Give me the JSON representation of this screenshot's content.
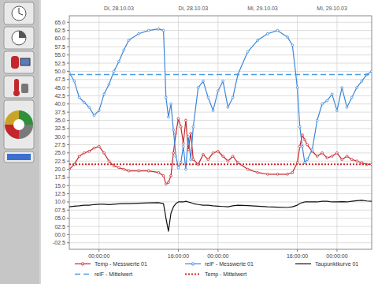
{
  "chart_data": {
    "type": "line",
    "x": [
      -6,
      -5,
      -4,
      -3,
      -2,
      -1,
      0,
      1,
      2,
      3,
      4,
      5,
      6,
      8,
      10,
      12,
      13,
      13.5,
      14,
      14.5,
      15,
      15.5,
      16,
      16.5,
      17,
      17.5,
      18,
      18.5,
      19,
      20,
      21,
      22,
      23,
      24,
      25,
      26,
      27,
      28,
      30,
      32,
      34,
      36,
      38,
      39,
      40,
      40.5,
      41,
      41.5,
      42,
      43,
      44,
      45,
      46,
      47,
      48,
      49,
      50,
      51,
      52,
      53,
      54,
      55
    ],
    "xlim": [
      -6,
      55
    ],
    "xticks": [
      {
        "value": 0,
        "label": "00:00:00"
      },
      {
        "value": 16,
        "label": "16:00:00"
      },
      {
        "value": 24,
        "label": "00:00:00"
      },
      {
        "value": 40,
        "label": "16:00:00"
      },
      {
        "value": 48,
        "label": "00:00:00"
      }
    ],
    "ylim": [
      -4.5,
      67
    ],
    "yticks": [
      {
        "value": 65,
        "label": "65.0"
      },
      62.5,
      {
        "value": 60,
        "label": "60.0"
      },
      57.5,
      {
        "value": 55,
        "label": "55.0"
      },
      52.5,
      {
        "value": 50,
        "label": "50.0"
      },
      47.5,
      {
        "value": 45,
        "label": "45.0"
      },
      42.5,
      {
        "value": 40,
        "label": "40.0"
      },
      37.5,
      {
        "value": 35,
        "label": "35.0"
      },
      32.5,
      {
        "value": 30,
        "label": "30.0"
      },
      27.5,
      {
        "value": 25,
        "label": "25.0"
      },
      22.5,
      {
        "value": 20,
        "label": "20.0"
      },
      17.5,
      {
        "value": 15,
        "label": "15.0"
      },
      12.5,
      {
        "value": 10,
        "label": "10.0"
      },
      {
        "value": 7.5,
        "label": "07.5"
      },
      {
        "value": 5,
        "label": "05.0"
      },
      {
        "value": 2.5,
        "label": "02.5"
      },
      {
        "value": 0,
        "label": "00.0"
      },
      {
        "value": -2.5,
        "label": "-02.5"
      }
    ],
    "grid": true,
    "legend": "bottom",
    "annotations": [
      {
        "text": "Di, 28.10.03",
        "x": 4
      },
      {
        "text": "Di, 28.10.03",
        "x": 19
      },
      {
        "text": "Mi, 29.10.03",
        "x": 33
      },
      {
        "text": "Mi, 29.10.03",
        "x": 47
      }
    ],
    "series": [
      {
        "name": "Temp - Messwerte 01",
        "color": "#c4262b",
        "marker": "circle",
        "line_style": "solid",
        "values": [
          20,
          21.5,
          24,
          25,
          25.5,
          26.5,
          27,
          25,
          22.5,
          21,
          20.5,
          20,
          19.5,
          19.5,
          19.5,
          19,
          18,
          15.5,
          16,
          18,
          25,
          31,
          35.5,
          33,
          28,
          35,
          26,
          31,
          23,
          21.5,
          24.5,
          23,
          25,
          25.5,
          24,
          22.5,
          24,
          22,
          20,
          19,
          18.5,
          18.5,
          18.5,
          19,
          22,
          27,
          30.5,
          29,
          27.5,
          25.5,
          24,
          25,
          23.5,
          24,
          25,
          23,
          24,
          23,
          22.5,
          22,
          21.5,
          21.5
        ]
      },
      {
        "name": "relF - Messwerte 01",
        "color": "#3b86d8",
        "marker": "circle",
        "line_style": "solid",
        "values": [
          49.5,
          47,
          42,
          40.5,
          39,
          36.5,
          38,
          43,
          46,
          50,
          53,
          56.5,
          59.5,
          61.5,
          62.5,
          63,
          62.5,
          42,
          36,
          40,
          32,
          24,
          20.5,
          22,
          27,
          20,
          30,
          23,
          33,
          45,
          47,
          42,
          38,
          44,
          47,
          39,
          42,
          49,
          56,
          59.5,
          61.5,
          62.5,
          60.5,
          58,
          45,
          33,
          27,
          22,
          23,
          26,
          35,
          40,
          41,
          43,
          38,
          45,
          39,
          42,
          45,
          47,
          49,
          50
        ]
      },
      {
        "name": "Taupunktkurve 01",
        "color": "#111111",
        "line_style": "solid",
        "values": [
          8.5,
          8.7,
          8.8,
          9,
          9,
          9.2,
          9.3,
          9.3,
          9.2,
          9.3,
          9.4,
          9.5,
          9.5,
          9.6,
          9.7,
          9.8,
          9.5,
          5,
          1,
          6.5,
          8.5,
          9.5,
          10,
          10,
          10,
          10.2,
          10,
          9.8,
          9.5,
          9.2,
          9,
          9,
          8.8,
          8.7,
          8.6,
          8.5,
          8.8,
          9,
          8.9,
          8.7,
          8.5,
          8.4,
          8.3,
          8.5,
          9,
          9.5,
          9.8,
          10,
          10,
          10,
          10,
          10.2,
          10.2,
          10,
          10,
          10.1,
          10,
          10.2,
          10.4,
          10.5,
          10.3,
          10.2
        ]
      },
      {
        "name": "relF - Mittelwert",
        "color": "#4a9be0",
        "line_style": "dashed",
        "values": [
          49,
          49,
          49,
          49,
          49,
          49,
          49,
          49,
          49,
          49,
          49,
          49,
          49,
          49,
          49,
          49,
          49,
          49,
          49,
          49,
          49,
          49,
          49,
          49,
          49,
          49,
          49,
          49,
          49,
          49,
          49,
          49,
          49,
          49,
          49,
          49,
          49,
          49,
          49,
          49,
          49,
          49,
          49,
          49,
          49,
          49,
          49,
          49,
          49,
          49,
          49,
          49,
          49,
          49,
          49,
          49,
          49,
          49,
          49,
          49,
          49,
          49
        ]
      },
      {
        "name": "Temp - Mittelwert",
        "color": "#d4232a",
        "line_style": "dotted",
        "values": [
          21.5,
          21.5,
          21.5,
          21.5,
          21.5,
          21.5,
          21.5,
          21.5,
          21.5,
          21.5,
          21.5,
          21.5,
          21.5,
          21.5,
          21.5,
          21.5,
          21.5,
          21.5,
          21.5,
          21.5,
          21.5,
          21.5,
          21.5,
          21.5,
          21.5,
          21.5,
          21.5,
          21.5,
          21.5,
          21.5,
          21.5,
          21.5,
          21.5,
          21.5,
          21.5,
          21.5,
          21.5,
          21.5,
          21.5,
          21.5,
          21.5,
          21.5,
          21.5,
          21.5,
          21.5,
          21.5,
          21.5,
          21.5,
          21.5,
          21.5,
          21.5,
          21.5,
          21.5,
          21.5,
          21.5,
          21.5,
          21.5,
          21.5,
          21.5,
          21.5,
          21.5,
          21.5
        ]
      }
    ]
  }
}
